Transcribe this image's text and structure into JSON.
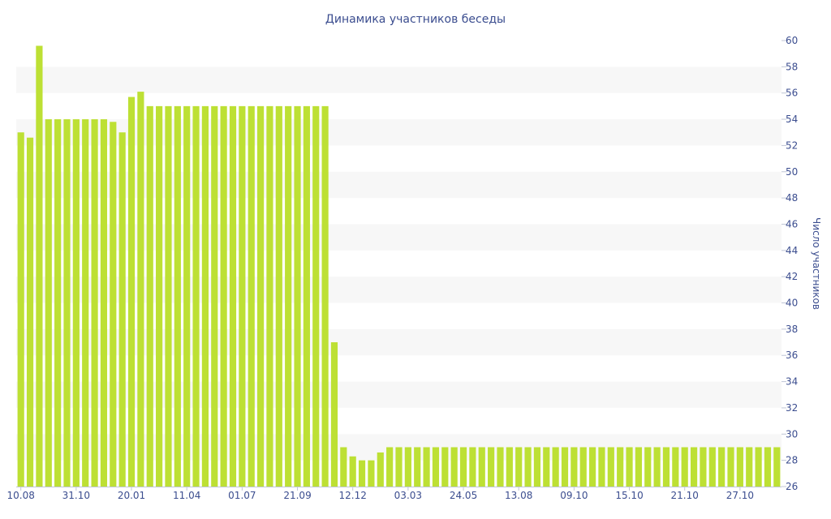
{
  "chart_data": {
    "type": "bar",
    "title": "Динамика участников беседы",
    "xlabel": "",
    "ylabel": "Число участников",
    "ylim": [
      26,
      60
    ],
    "yticks": [
      26,
      28,
      30,
      32,
      34,
      36,
      38,
      40,
      42,
      44,
      46,
      48,
      50,
      52,
      54,
      56,
      58,
      60
    ],
    "y_axis_position": "right",
    "grid": "alternating horizontal bands",
    "bar_color": "#bde034",
    "band_color": "#f7f7f7",
    "text_color": "#3b4d8f",
    "x_tick_labels": [
      {
        "index": 0,
        "label": "10.08"
      },
      {
        "index": 6,
        "label": "31.10"
      },
      {
        "index": 12,
        "label": "20.01"
      },
      {
        "index": 18,
        "label": "11.04"
      },
      {
        "index": 24,
        "label": "01.07"
      },
      {
        "index": 30,
        "label": "21.09"
      },
      {
        "index": 36,
        "label": "12.12"
      },
      {
        "index": 42,
        "label": "03.03"
      },
      {
        "index": 48,
        "label": "24.05"
      },
      {
        "index": 54,
        "label": "13.08"
      },
      {
        "index": 60,
        "label": "09.10"
      },
      {
        "index": 66,
        "label": "15.10"
      },
      {
        "index": 72,
        "label": "21.10"
      },
      {
        "index": 78,
        "label": "27.10"
      }
    ],
    "values": [
      53,
      52.6,
      59.6,
      54,
      54,
      54,
      54,
      54,
      54,
      54,
      53.8,
      53,
      55.7,
      56.1,
      55,
      55,
      55,
      55,
      55,
      55,
      55,
      55,
      55,
      55,
      55,
      55,
      55,
      55,
      55,
      55,
      55,
      55,
      55,
      55,
      37,
      29,
      28.3,
      28,
      28,
      28.6,
      29,
      29,
      29,
      29,
      29,
      29,
      29,
      29,
      29,
      29,
      29,
      29,
      29,
      29,
      29,
      29,
      29,
      29,
      29,
      29,
      29,
      29,
      29,
      29,
      29,
      29,
      29,
      29,
      29,
      29,
      29,
      29,
      29,
      29,
      29,
      29,
      29,
      29,
      29,
      29,
      29,
      29,
      29
    ]
  }
}
